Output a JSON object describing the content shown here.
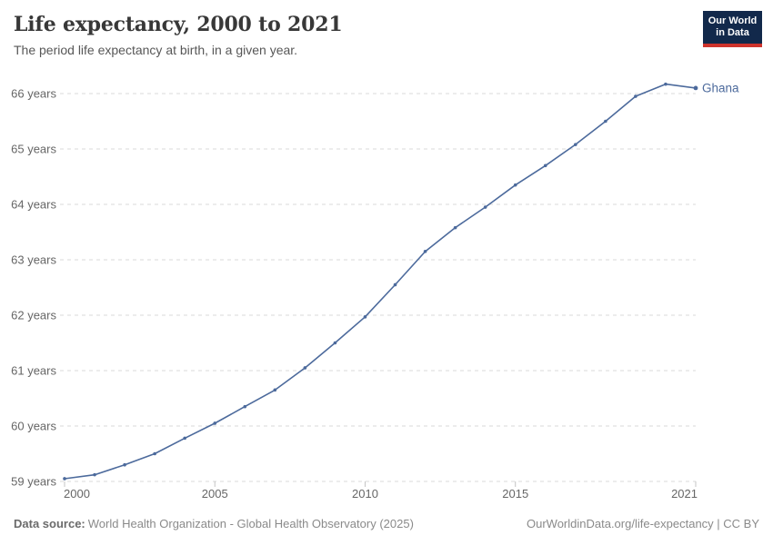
{
  "header": {
    "title": "Life expectancy, 2000 to 2021",
    "subtitle": "The period life expectancy at birth, in a given year."
  },
  "logo": {
    "line1": "Our World",
    "line2": "in Data"
  },
  "footer": {
    "source_label": "Data source:",
    "source_text": "World Health Organization - Global Health Observatory (2025)",
    "right": "OurWorldinData.org/life-expectancy | CC BY"
  },
  "colors": {
    "line": "#4C6A9C",
    "entity_label": "#4C6A9C",
    "grid": "#DADADA",
    "axis_text": "#666666",
    "title_text": "#383838",
    "subtitle_text": "#575757",
    "footer_text": "#8a8a8a",
    "logo_bg": "#12294B",
    "logo_red": "#CE332C"
  },
  "chart_data": {
    "type": "line",
    "title": "Life expectancy, 2000 to 2021",
    "subtitle": "The period life expectancy at birth, in a given year.",
    "xlabel": "",
    "ylabel": "",
    "x": [
      2000,
      2001,
      2002,
      2003,
      2004,
      2005,
      2006,
      2007,
      2008,
      2009,
      2010,
      2011,
      2012,
      2013,
      2014,
      2015,
      2016,
      2017,
      2018,
      2019,
      2020,
      2021
    ],
    "series": [
      {
        "name": "Ghana",
        "values": [
          59.05,
          59.12,
          59.3,
          59.5,
          59.78,
          60.05,
          60.35,
          60.65,
          61.05,
          61.5,
          61.97,
          62.55,
          63.15,
          63.58,
          63.95,
          64.35,
          64.7,
          65.08,
          65.5,
          65.95,
          66.17,
          66.1
        ]
      }
    ],
    "x_ticks": [
      2000,
      2005,
      2010,
      2015,
      2021
    ],
    "y_ticks": [
      59,
      60,
      61,
      62,
      63,
      64,
      65,
      66
    ],
    "y_tick_suffix": " years",
    "xlim": [
      2000,
      2021
    ],
    "ylim": [
      59,
      66
    ],
    "grid": "horizontal-dashed",
    "legend": "end-of-line-label",
    "markers": true
  }
}
